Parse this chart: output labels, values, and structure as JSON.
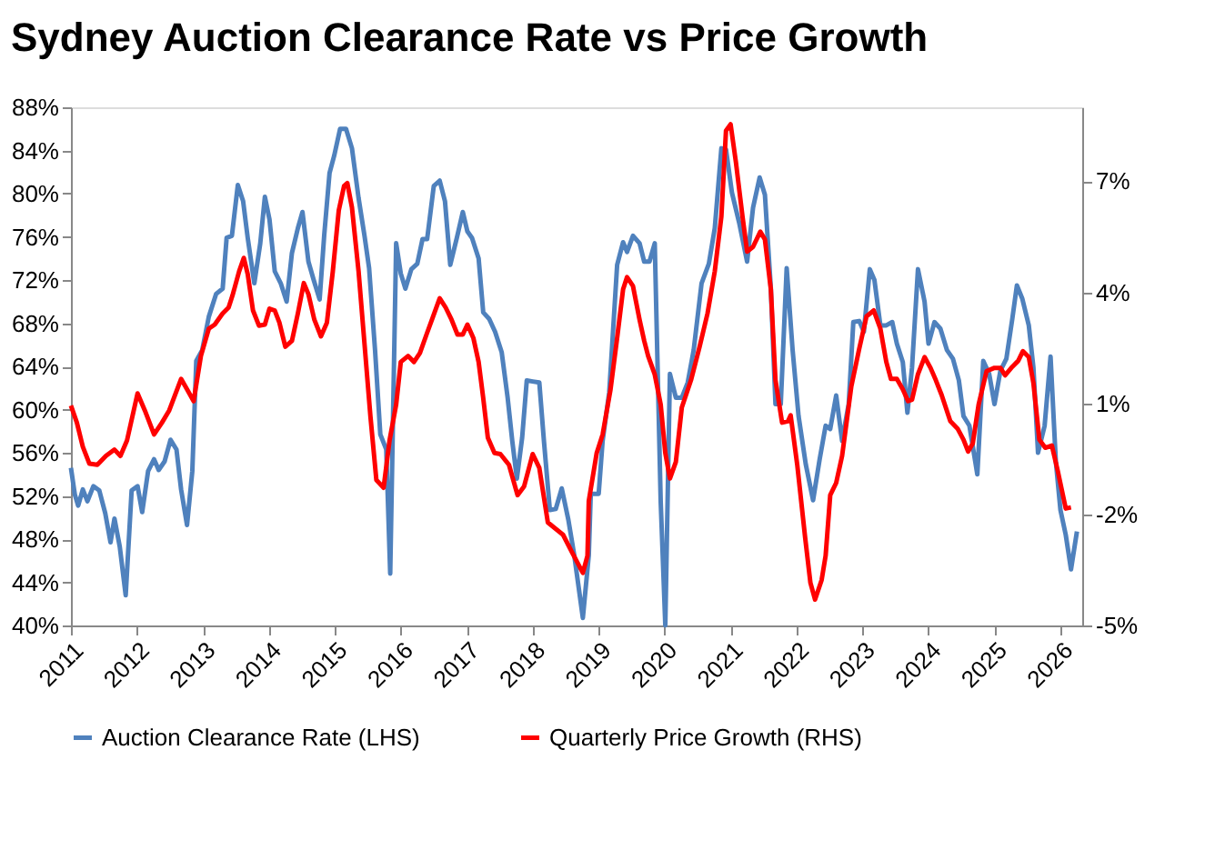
{
  "chart_data": {
    "type": "line",
    "title": "Sydney Auction Clearance Rate vs Price Growth",
    "xlim": [
      2011,
      2026.33
    ],
    "xticks": [
      2011,
      2012,
      2013,
      2014,
      2015,
      2016,
      2017,
      2018,
      2019,
      2020,
      2021,
      2022,
      2023,
      2024,
      2025,
      2026
    ],
    "ylim": [
      40,
      88
    ],
    "yticks": [
      {
        "value": 40,
        "label": "40%"
      },
      {
        "value": 44,
        "label": "44%"
      },
      {
        "value": 48,
        "label": "48%"
      },
      {
        "value": 52,
        "label": "52%"
      },
      {
        "value": 56,
        "label": "56%"
      },
      {
        "value": 60,
        "label": "60%"
      },
      {
        "value": 64,
        "label": "64%"
      },
      {
        "value": 68,
        "label": "68%"
      },
      {
        "value": 72,
        "label": "72%"
      },
      {
        "value": 76,
        "label": "76%"
      },
      {
        "value": 80,
        "label": "80%"
      },
      {
        "value": 84,
        "label": "84%"
      },
      {
        "value": 88,
        "label": "88%"
      }
    ],
    "y2lim": [
      -5,
      9
    ],
    "y2ticks": [
      {
        "value": -5,
        "label": "-5%"
      },
      {
        "value": -2,
        "label": "-2%"
      },
      {
        "value": 1,
        "label": "1%"
      },
      {
        "value": 4,
        "label": "4%"
      },
      {
        "value": 7,
        "label": "7%"
      }
    ],
    "grid": false,
    "legend": "bottom",
    "marker": "none",
    "line_style": "solid",
    "series": [
      {
        "name": "Auction Clearance Rate (LHS)",
        "color": "#4f81bd",
        "x": [
          2011.0,
          2011.06,
          2011.11,
          2011.18,
          2011.25,
          2011.34,
          2011.43,
          2011.52,
          2011.6,
          2011.66,
          2011.74,
          2011.83,
          2011.92,
          2012.01,
          2012.08,
          2012.17,
          2012.26,
          2012.33,
          2012.42,
          2012.51,
          2012.6,
          2012.67,
          2012.76,
          2012.84,
          2012.9,
          2012.99,
          2013.09,
          2013.2,
          2013.3,
          2013.36,
          2013.44,
          2013.53,
          2013.61,
          2013.68,
          2013.78,
          2013.87,
          2013.94,
          2014.01,
          2014.09,
          2014.18,
          2014.27,
          2014.35,
          2014.44,
          2014.51,
          2014.6,
          2014.68,
          2014.77,
          2014.84,
          2014.92,
          2014.99,
          2015.08,
          2015.17,
          2015.26,
          2015.36,
          2015.45,
          2015.52,
          2015.61,
          2015.69,
          2015.78,
          2015.84,
          2015.93,
          2016.0,
          2016.07,
          2016.16,
          2016.25,
          2016.33,
          2016.4,
          2016.5,
          2016.59,
          2016.67,
          2016.75,
          2016.85,
          2016.94,
          2017.01,
          2017.08,
          2017.18,
          2017.25,
          2017.34,
          2017.43,
          2017.53,
          2017.62,
          2017.69,
          2017.76,
          2017.84,
          2017.91,
          2018.0,
          2018.1,
          2018.17,
          2018.26,
          2018.35,
          2018.44,
          2018.54,
          2018.63,
          2018.76,
          2018.85,
          2018.88,
          2019.0,
          2019.06,
          2019.16,
          2019.28,
          2019.37,
          2019.43,
          2019.52,
          2019.62,
          2019.69,
          2019.77,
          2019.85,
          2019.94,
          2020.01,
          2020.08,
          2020.17,
          2020.26,
          2020.35,
          2020.44,
          2020.56,
          2020.67,
          2020.76,
          2020.86,
          2020.93,
          2021.02,
          2021.13,
          2021.25,
          2021.34,
          2021.44,
          2021.52,
          2021.61,
          2021.68,
          2021.76,
          2021.85,
          2021.94,
          2022.03,
          2022.14,
          2022.25,
          2022.35,
          2022.44,
          2022.51,
          2022.6,
          2022.69,
          2022.79,
          2022.86,
          2022.95,
          2023.02,
          2023.11,
          2023.18,
          2023.27,
          2023.36,
          2023.45,
          2023.52,
          2023.61,
          2023.68,
          2023.75,
          2023.84,
          2023.94,
          2024.0,
          2024.09,
          2024.18,
          2024.28,
          2024.37,
          2024.46,
          2024.53,
          2024.62,
          2024.74,
          2024.83,
          2024.92,
          2025.0,
          2025.09,
          2025.18,
          2025.27,
          2025.34,
          2025.42,
          2025.52,
          2025.59,
          2025.66,
          2025.76,
          2025.85,
          2025.93,
          2026.0,
          2026.08,
          2026.16,
          2026.25
        ],
        "values": [
          54.6,
          52.1,
          51.1,
          52.6,
          51.5,
          52.9,
          52.5,
          50.4,
          47.7,
          49.9,
          47.3,
          42.8,
          52.5,
          52.9,
          50.5,
          54.3,
          55.4,
          54.4,
          55.2,
          57.2,
          56.3,
          52.6,
          49.3,
          54.3,
          64.5,
          65.5,
          68.6,
          70.7,
          71.2,
          75.9,
          76.1,
          80.8,
          79.3,
          75.9,
          71.7,
          75.4,
          79.7,
          77.6,
          72.8,
          71.7,
          70.0,
          74.5,
          76.8,
          78.3,
          73.7,
          72.0,
          70.2,
          76.2,
          81.9,
          83.5,
          86.0,
          86.0,
          84.2,
          79.6,
          76.1,
          73.1,
          65.5,
          57.7,
          56.3,
          44.8,
          75.4,
          72.6,
          71.2,
          73.0,
          73.5,
          75.8,
          75.8,
          80.7,
          81.2,
          79.3,
          73.4,
          75.9,
          78.3,
          76.5,
          75.9,
          74.0,
          69.0,
          68.4,
          67.2,
          65.3,
          61.1,
          57.1,
          53.6,
          57.4,
          62.7,
          62.6,
          62.5,
          57.1,
          50.7,
          50.8,
          52.7,
          49.8,
          46.5,
          40.7,
          46.5,
          52.2,
          52.2,
          57.1,
          61.6,
          73.4,
          75.5,
          74.6,
          76.1,
          75.4,
          73.7,
          73.7,
          75.4,
          51.5,
          40.0,
          63.3,
          61.1,
          61.1,
          62.5,
          65.5,
          71.7,
          73.5,
          76.8,
          84.2,
          84.1,
          80.1,
          77.3,
          73.7,
          78.7,
          81.5,
          79.9,
          71.2,
          60.5,
          60.5,
          73.1,
          65.5,
          59.4,
          54.9,
          51.6,
          55.4,
          58.5,
          58.2,
          61.3,
          57.1,
          60.5,
          68.1,
          68.2,
          67.2,
          73.0,
          72.0,
          67.8,
          67.8,
          68.1,
          66.1,
          64.4,
          59.7,
          63.9,
          73.0,
          70.0,
          66.1,
          68.1,
          67.5,
          65.5,
          64.7,
          62.7,
          59.4,
          58.5,
          54.0,
          64.5,
          63.3,
          60.5,
          63.6,
          64.7,
          68.4,
          71.5,
          70.3,
          67.8,
          63.9,
          56.0,
          58.5,
          64.9,
          55.2,
          50.7,
          48.4,
          45.2,
          48.7
        ]
      },
      {
        "name": "Quarterly Price Growth (RHS)",
        "color": "#ff0000",
        "axis": "y2",
        "x": [
          2011.0,
          2011.09,
          2011.18,
          2011.28,
          2011.4,
          2011.53,
          2011.66,
          2011.75,
          2011.85,
          2012.01,
          2012.12,
          2012.26,
          2012.38,
          2012.49,
          2012.67,
          2012.76,
          2012.86,
          2012.97,
          2013.09,
          2013.18,
          2013.3,
          2013.39,
          2013.45,
          2013.55,
          2013.62,
          2013.68,
          2013.76,
          2013.85,
          2013.94,
          2014.01,
          2014.09,
          2014.16,
          2014.25,
          2014.35,
          2014.44,
          2014.53,
          2014.6,
          2014.69,
          2014.79,
          2014.88,
          2014.97,
          2015.06,
          2015.14,
          2015.19,
          2015.26,
          2015.36,
          2015.45,
          2015.54,
          2015.63,
          2015.74,
          2015.83,
          2015.93,
          2016.0,
          2016.11,
          2016.2,
          2016.29,
          2016.39,
          2016.48,
          2016.59,
          2016.68,
          2016.77,
          2016.86,
          2016.94,
          2017.01,
          2017.1,
          2017.18,
          2017.25,
          2017.32,
          2017.42,
          2017.51,
          2017.64,
          2017.77,
          2017.87,
          2018.0,
          2018.1,
          2018.23,
          2018.46,
          2018.6,
          2018.76,
          2018.83,
          2018.85,
          2018.97,
          2019.06,
          2019.18,
          2019.28,
          2019.37,
          2019.43,
          2019.52,
          2019.62,
          2019.69,
          2019.75,
          2019.85,
          2019.94,
          2020.01,
          2020.08,
          2020.17,
          2020.26,
          2020.4,
          2020.53,
          2020.65,
          2020.76,
          2020.86,
          2020.93,
          2021.0,
          2021.08,
          2021.18,
          2021.25,
          2021.34,
          2021.45,
          2021.52,
          2021.61,
          2021.68,
          2021.78,
          2021.87,
          2021.91,
          2022.01,
          2022.13,
          2022.21,
          2022.28,
          2022.38,
          2022.44,
          2022.51,
          2022.6,
          2022.69,
          2022.83,
          2022.95,
          2023.06,
          2023.17,
          2023.27,
          2023.36,
          2023.43,
          2023.52,
          2023.61,
          2023.69,
          2023.75,
          2023.84,
          2023.94,
          2024.03,
          2024.11,
          2024.2,
          2024.33,
          2024.44,
          2024.53,
          2024.6,
          2024.67,
          2024.76,
          2024.88,
          2025.0,
          2025.09,
          2025.16,
          2025.27,
          2025.36,
          2025.43,
          2025.52,
          2025.59,
          2025.68,
          2025.77,
          2025.87,
          2025.96,
          2026.08,
          2026.16
        ],
        "values": [
          0.94,
          0.48,
          -0.17,
          -0.63,
          -0.66,
          -0.42,
          -0.25,
          -0.42,
          0.0,
          1.27,
          0.81,
          0.16,
          0.48,
          0.81,
          1.66,
          1.38,
          1.06,
          2.28,
          3.02,
          3.13,
          3.43,
          3.59,
          3.92,
          4.57,
          4.93,
          4.49,
          3.51,
          3.1,
          3.13,
          3.56,
          3.51,
          3.18,
          2.53,
          2.69,
          3.43,
          4.25,
          3.95,
          3.26,
          2.81,
          3.18,
          4.57,
          6.21,
          6.87,
          6.95,
          6.29,
          4.57,
          2.61,
          0.65,
          -1.07,
          -1.28,
          0.0,
          0.97,
          2.12,
          2.28,
          2.12,
          2.36,
          2.86,
          3.3,
          3.84,
          3.59,
          3.26,
          2.86,
          2.86,
          3.13,
          2.77,
          2.12,
          1.14,
          0.07,
          -0.34,
          -0.37,
          -0.66,
          -1.48,
          -1.24,
          -0.37,
          -0.74,
          -2.22,
          -2.55,
          -3.04,
          -3.58,
          -3.12,
          -1.64,
          -0.34,
          0.16,
          1.38,
          2.77,
          4.08,
          4.41,
          4.17,
          3.26,
          2.69,
          2.28,
          1.78,
          0.97,
          -0.34,
          -1.03,
          -0.58,
          0.89,
          1.63,
          2.53,
          3.43,
          4.57,
          6.05,
          8.37,
          8.54,
          7.52,
          6.05,
          5.1,
          5.23,
          5.64,
          5.43,
          4.08,
          1.63,
          0.48,
          0.52,
          0.68,
          -0.66,
          -2.63,
          -3.85,
          -4.3,
          -3.77,
          -3.12,
          -1.48,
          -1.15,
          -0.42,
          1.46,
          2.48,
          3.35,
          3.51,
          3.02,
          2.12,
          1.66,
          1.66,
          1.38,
          1.06,
          1.1,
          1.79,
          2.25,
          1.96,
          1.63,
          1.22,
          0.52,
          0.32,
          0.02,
          -0.3,
          -0.09,
          0.97,
          1.87,
          1.96,
          1.96,
          1.76,
          1.99,
          2.15,
          2.41,
          2.25,
          1.55,
          0.02,
          -0.2,
          -0.14,
          -0.83,
          -1.84,
          -1.81
        ]
      }
    ]
  }
}
